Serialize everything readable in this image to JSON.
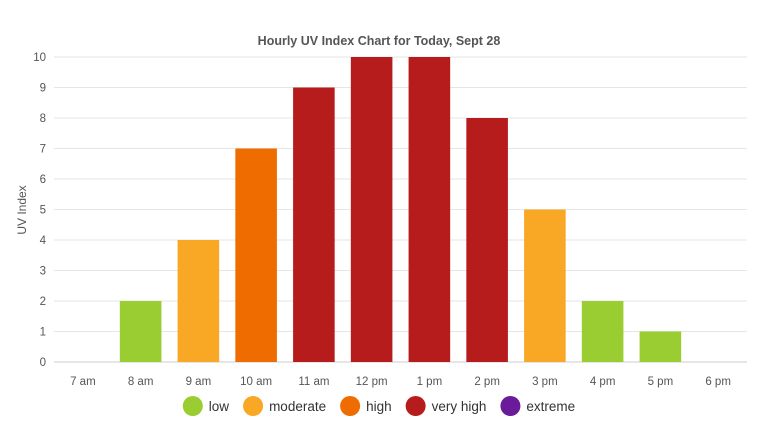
{
  "chart_data": {
    "type": "bar",
    "title": "Hourly UV Index Chart for Today, Sept 28",
    "xlabel": "",
    "ylabel": "UV Index",
    "ylim": [
      0,
      10
    ],
    "yticks": [
      0,
      1,
      2,
      3,
      4,
      5,
      6,
      7,
      8,
      9,
      10
    ],
    "grid": true,
    "legend_position": "bottom",
    "categories": [
      "7 am",
      "8 am",
      "9 am",
      "10 am",
      "11 am",
      "12 pm",
      "1 pm",
      "2 pm",
      "3 pm",
      "4 pm",
      "5 pm",
      "6 pm"
    ],
    "values": [
      0,
      2,
      4,
      7,
      9,
      10,
      10,
      8,
      5,
      2,
      1,
      0
    ],
    "bar_levels": [
      "low",
      "low",
      "moderate",
      "high",
      "very high",
      "very high",
      "very high",
      "very high",
      "moderate",
      "low",
      "low",
      "low"
    ],
    "legend": [
      {
        "name": "low",
        "color": "#9acd32"
      },
      {
        "name": "moderate",
        "color": "#f9a826"
      },
      {
        "name": "high",
        "color": "#ef6c00"
      },
      {
        "name": "very high",
        "color": "#b71c1c"
      },
      {
        "name": "extreme",
        "color": "#6a1b9a"
      }
    ]
  }
}
